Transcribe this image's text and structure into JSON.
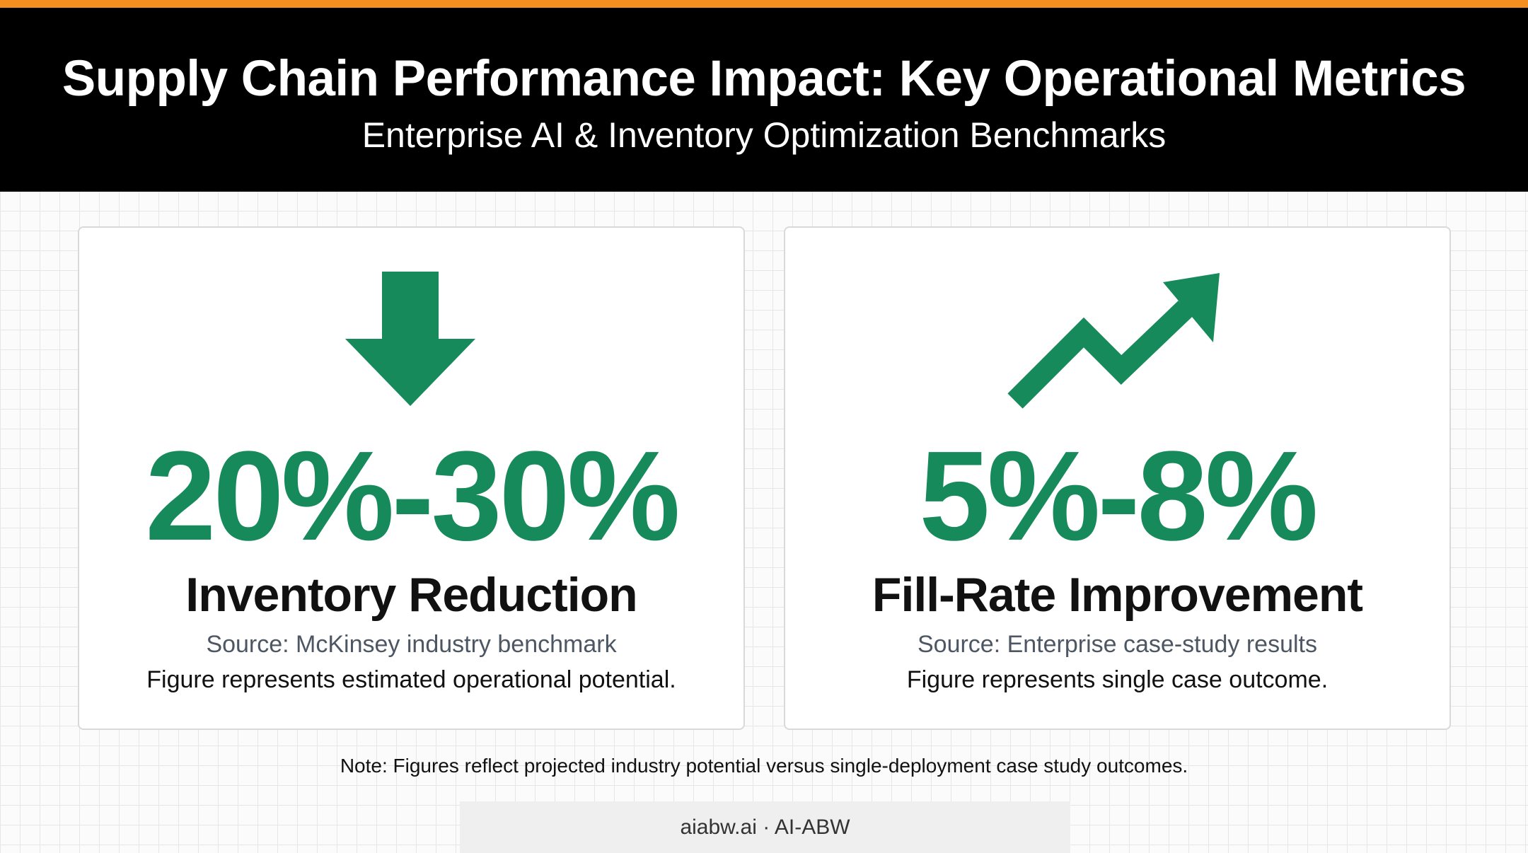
{
  "header": {
    "title": "Supply Chain Performance Impact: Key Operational Metrics",
    "subtitle": "Enterprise AI & Inventory Optimization Benchmarks"
  },
  "colors": {
    "accent": "#f5901e",
    "metric_green": "#168a5b",
    "header_bg": "#000000"
  },
  "cards": [
    {
      "icon": "arrow-down-icon",
      "metric": "20%-30%",
      "label": "Inventory Reduction",
      "source": "Source: McKinsey industry benchmark",
      "description": "Figure represents estimated operational potential."
    },
    {
      "icon": "trend-up-arrow-icon",
      "metric": "5%-8%",
      "label": "Fill-Rate Improvement",
      "source": "Source: Enterprise case-study results",
      "description": "Figure represents single case outcome."
    }
  ],
  "note": "Note: Figures reflect projected industry potential versus single-deployment case study outcomes.",
  "footer": "aiabw.ai · AI-ABW"
}
